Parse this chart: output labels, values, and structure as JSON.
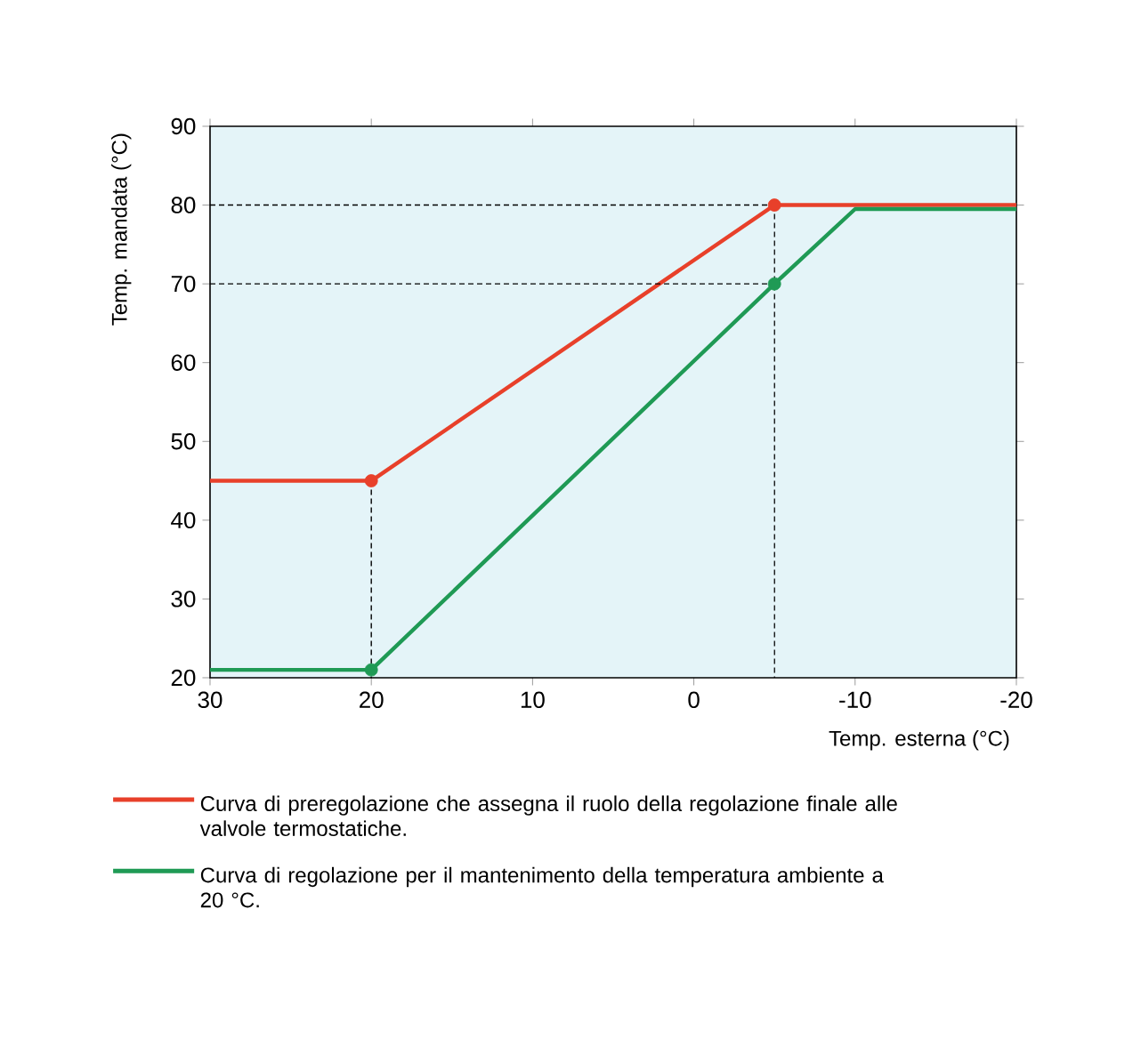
{
  "chart_data": {
    "type": "line",
    "xlabel": "Temp. esterna (°C)",
    "ylabel": "Temp. mandata (°C)",
    "xlim": [
      30,
      -20
    ],
    "xticks": [
      30,
      20,
      10,
      0,
      -10,
      -20
    ],
    "ylim": [
      20,
      90
    ],
    "yticks": [
      20,
      30,
      40,
      50,
      60,
      70,
      80,
      90
    ],
    "grid": false,
    "legend": "bottom",
    "series": [
      {
        "name": "Curva di preregolazione che assegna il ruolo della regolazione finale alle valvole termostatiche.",
        "color": "#e8402a",
        "x": [
          30,
          20,
          -5,
          -20
        ],
        "values": [
          45,
          45,
          80,
          80
        ]
      },
      {
        "name": "Curva di regolazione per il mantenimento della temperatura ambiente a 20 °C.",
        "color": "#1f9a55",
        "x": [
          30,
          20,
          -5,
          -10,
          -20
        ],
        "values": [
          21,
          21,
          70,
          79.5,
          79.5
        ]
      },
      {
        "type": "scatter",
        "marker": "circle",
        "color": "#e8402a",
        "x": [
          20,
          -5
        ],
        "values": [
          45,
          80
        ]
      },
      {
        "type": "scatter",
        "marker": "circle",
        "color": "#1f9a55",
        "x": [
          20,
          -5
        ],
        "values": [
          21,
          70
        ]
      },
      {
        "line_style": "dashed",
        "color": "#000000",
        "x": [
          30,
          -5
        ],
        "values": [
          80,
          80
        ]
      },
      {
        "line_style": "dashed",
        "color": "#000000",
        "x": [
          30,
          -5
        ],
        "values": [
          70,
          70
        ]
      },
      {
        "line_style": "dashed",
        "color": "#000000",
        "x": [
          20,
          20
        ],
        "values": [
          45,
          20
        ]
      },
      {
        "line_style": "dashed",
        "color": "#000000",
        "x": [
          -5,
          -5
        ],
        "values": [
          80,
          20
        ]
      }
    ]
  }
}
